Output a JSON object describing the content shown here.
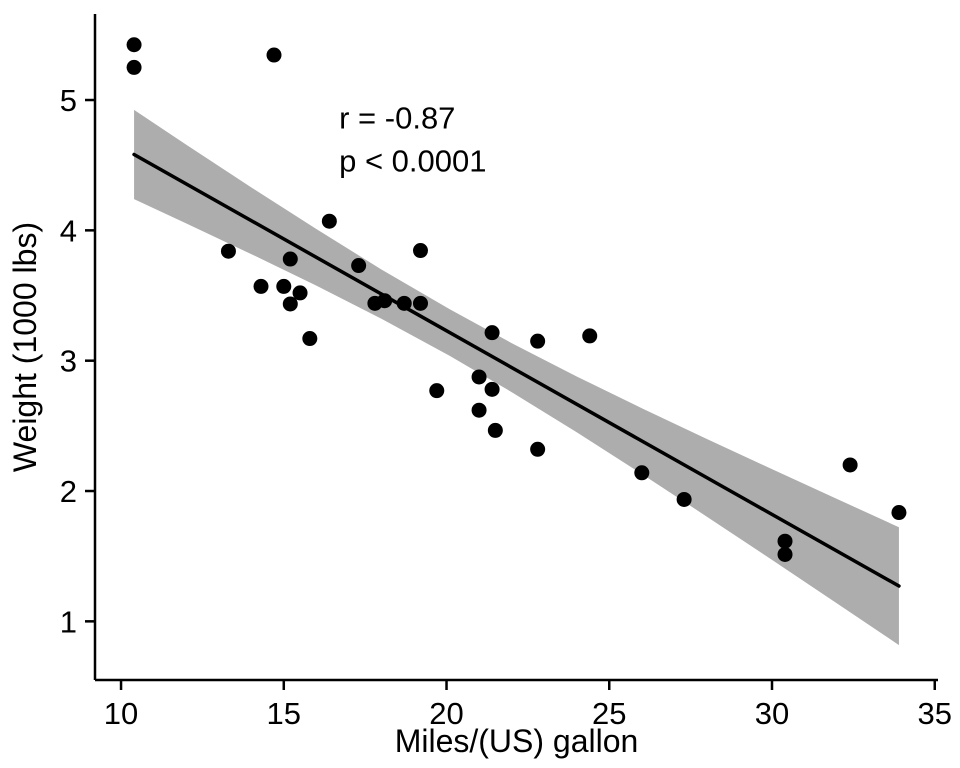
{
  "chart_data": {
    "type": "scatter",
    "xlabel": "Miles/(US) gallon",
    "ylabel": "Weight (1000 lbs)",
    "x_ticks": [
      10,
      15,
      20,
      25,
      30,
      35
    ],
    "y_ticks": [
      1,
      2,
      3,
      4,
      5
    ],
    "x_domain": [
      9.2,
      35.1
    ],
    "y_domain": [
      0.55,
      5.66
    ],
    "grid": false,
    "legend": "none",
    "points": [
      [
        21.0,
        2.62
      ],
      [
        21.0,
        2.875
      ],
      [
        22.8,
        2.32
      ],
      [
        21.4,
        3.215
      ],
      [
        18.7,
        3.44
      ],
      [
        18.1,
        3.46
      ],
      [
        14.3,
        3.57
      ],
      [
        24.4,
        3.19
      ],
      [
        22.8,
        3.15
      ],
      [
        19.2,
        3.44
      ],
      [
        17.8,
        3.44
      ],
      [
        16.4,
        4.07
      ],
      [
        17.3,
        3.73
      ],
      [
        15.2,
        3.78
      ],
      [
        10.4,
        5.25
      ],
      [
        10.4,
        5.424
      ],
      [
        14.7,
        5.345
      ],
      [
        32.4,
        2.2
      ],
      [
        30.4,
        1.615
      ],
      [
        33.9,
        1.835
      ],
      [
        21.5,
        2.465
      ],
      [
        15.5,
        3.52
      ],
      [
        15.2,
        3.435
      ],
      [
        13.3,
        3.84
      ],
      [
        19.2,
        3.845
      ],
      [
        27.3,
        1.935
      ],
      [
        26.0,
        2.14
      ],
      [
        30.4,
        1.513
      ],
      [
        15.8,
        3.17
      ],
      [
        19.7,
        2.77
      ],
      [
        15.0,
        3.57
      ],
      [
        21.4,
        2.78
      ]
    ],
    "regression_line": {
      "x1": 10.4,
      "y1": 4.582,
      "x2": 33.9,
      "y2": 1.271
    },
    "confidence_band": [
      [
        10.4,
        4.24,
        4.924
      ],
      [
        12.0,
        4.054,
        4.658
      ],
      [
        14.0,
        3.818,
        4.33
      ],
      [
        16.0,
        3.576,
        4.01
      ],
      [
        18.0,
        3.322,
        3.7
      ],
      [
        20.1,
        3.037,
        3.395
      ],
      [
        22.0,
        2.759,
        3.135
      ],
      [
        24.0,
        2.451,
        2.879
      ],
      [
        26.0,
        2.131,
        2.635
      ],
      [
        28.0,
        1.803,
        2.399
      ],
      [
        30.0,
        1.472,
        2.168
      ],
      [
        32.0,
        1.137,
        1.939
      ],
      [
        33.9,
        0.818,
        1.722
      ]
    ],
    "annotations": [
      {
        "text": "r = -0.87",
        "x": 16.7,
        "y": 4.78
      },
      {
        "text": "p < 0.0001",
        "x": 16.7,
        "y": 4.45
      }
    ],
    "colors": {
      "point": "#000000",
      "line": "#000000",
      "band": "#adadad",
      "axis": "#000000",
      "text": "#000000",
      "background": "#ffffff"
    }
  }
}
